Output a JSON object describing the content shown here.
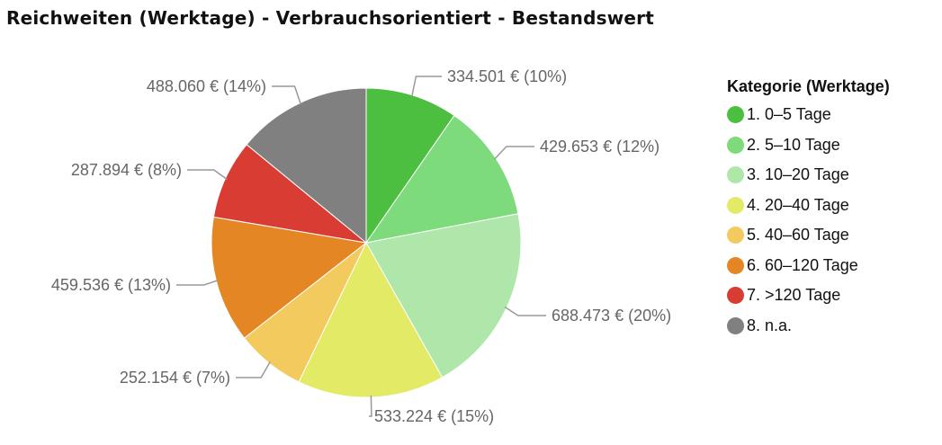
{
  "chart_data": {
    "type": "pie",
    "title": "Reichweiten (Werktage) - Verbrauchsorientiert - Bestandswert",
    "legend_title": "Kategorie (Werktage)",
    "legend_position": "right",
    "slices": [
      {
        "name": "1. 0–5 Tage",
        "value": 334501,
        "label": "334.501 € (10%)",
        "color": "#4cbf40"
      },
      {
        "name": "2. 5–10 Tage",
        "value": 429653,
        "label": "429.653 € (12%)",
        "color": "#7ddb7b"
      },
      {
        "name": "3. 10–20 Tage",
        "value": 688473,
        "label": "688.473 € (20%)",
        "color": "#aee7a9"
      },
      {
        "name": "4. 20–40 Tage",
        "value": 533224,
        "label": "533.224 € (15%)",
        "color": "#e2ea66"
      },
      {
        "name": "5. 40–60 Tage",
        "value": 252154,
        "label": "252.154 € (7%)",
        "color": "#f2ca5e"
      },
      {
        "name": "6. 60–120 Tage",
        "value": 459536,
        "label": "459.536 € (13%)",
        "color": "#e58624"
      },
      {
        "name": "7. >120 Tage",
        "value": 287894,
        "label": "287.894 € (8%)",
        "color": "#d93c33"
      },
      {
        "name": "8. n.a.",
        "value": 488060,
        "label": "488.060 € (14%)",
        "color": "#808080"
      }
    ]
  }
}
